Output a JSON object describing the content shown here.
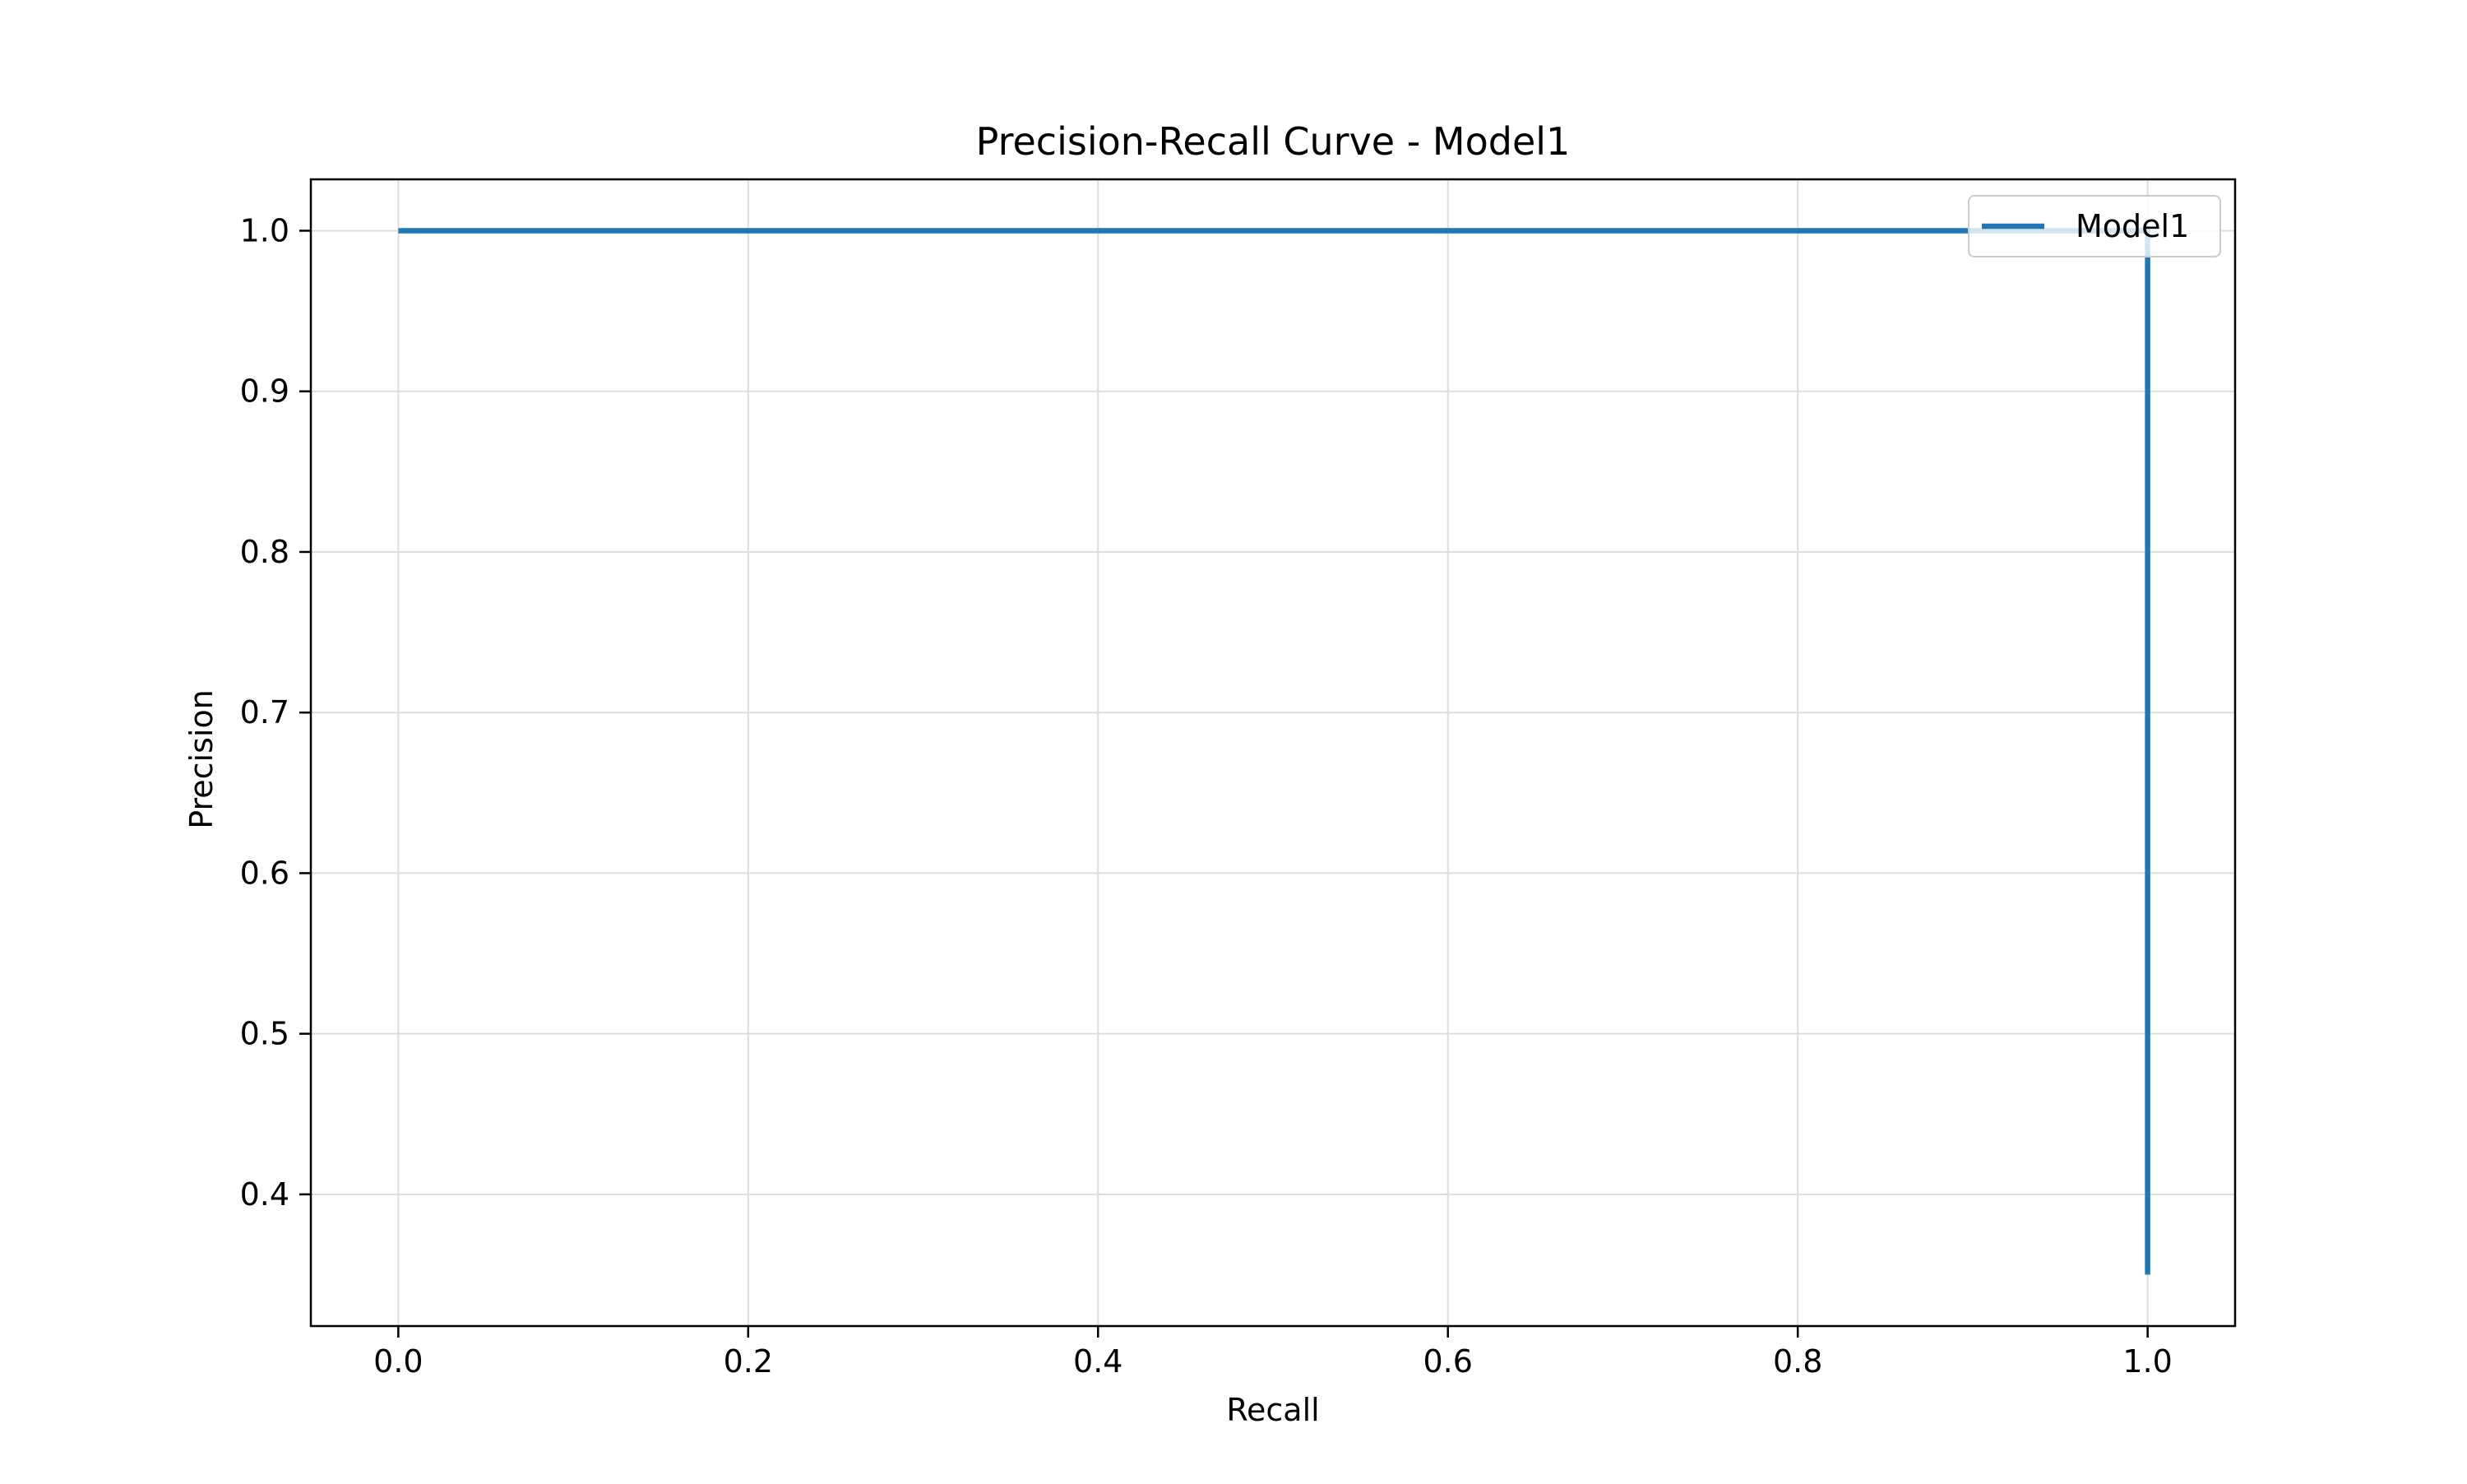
{
  "chart_data": {
    "type": "line",
    "title": "Precision-Recall Curve - Model1",
    "xlabel": "Recall",
    "ylabel": "Precision",
    "xlim": [
      -0.05,
      1.05
    ],
    "ylim": [
      0.318,
      1.032
    ],
    "xticks": [
      0.0,
      0.2,
      0.4,
      0.6,
      0.8,
      1.0
    ],
    "xtick_labels": [
      "0.0",
      "0.2",
      "0.4",
      "0.6",
      "0.8",
      "1.0"
    ],
    "yticks": [
      0.4,
      0.5,
      0.6,
      0.7,
      0.8,
      0.9,
      1.0
    ],
    "ytick_labels": [
      "0.4",
      "0.5",
      "0.6",
      "0.7",
      "0.8",
      "0.9",
      "1.0"
    ],
    "grid": true,
    "legend_position": "top-right",
    "series": [
      {
        "name": "Model1",
        "color": "#1f77b4",
        "x": [
          0.0,
          1.0,
          1.0
        ],
        "y": [
          1.0,
          1.0,
          0.35
        ]
      }
    ]
  }
}
